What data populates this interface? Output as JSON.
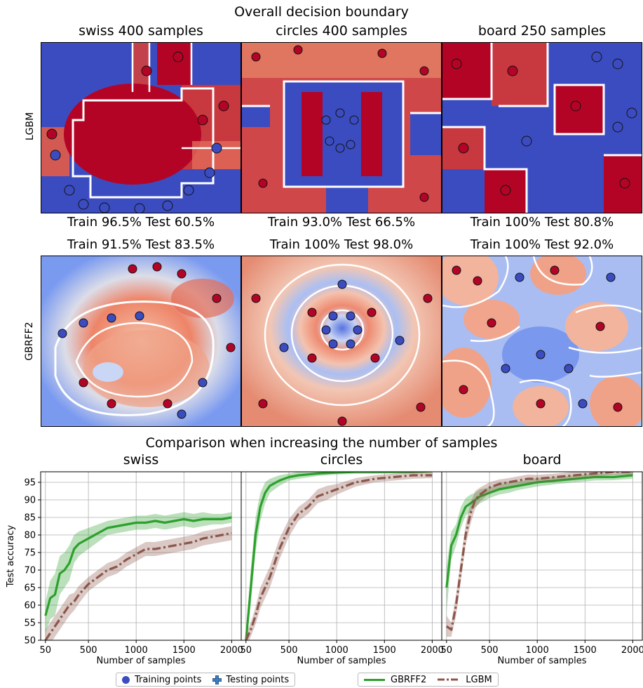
{
  "figure": {
    "top_title": "Overall decision boundary",
    "bottom_title": "Comparison when increasing the number of samples",
    "row_labels": [
      "LGBM",
      "GBRFF2"
    ],
    "columns": [
      {
        "name": "swiss",
        "title": "swiss 400 samples",
        "lgbm_score": "Train 96.5% Test 60.5%",
        "gbrff2_score": "Train 91.5% Test 83.5%"
      },
      {
        "name": "circles",
        "title": "circles 400 samples",
        "lgbm_score": "Train 93.0% Test 66.5%",
        "gbrff2_score": "Train 100% Test 98.0%"
      },
      {
        "name": "board",
        "title": "board 250 samples",
        "lgbm_score": "Train 100% Test 80.8%",
        "gbrff2_score": "Train 100% Test 92.0%"
      }
    ],
    "colors": {
      "blue": "#3b4cc0",
      "red": "#b40426",
      "green": "#2ca02c",
      "brown": "#8c564b"
    },
    "legend": {
      "training": "Training points",
      "testing": "Testing points",
      "gbrff2": "GBRFF2",
      "lgbm": "LGBM"
    }
  },
  "chart_data": [
    {
      "type": "line",
      "title": "swiss",
      "xlabel": "Number of samples",
      "ylabel": "Test accuracy",
      "xlim": [
        0,
        2100
      ],
      "ylim": [
        50,
        98
      ],
      "grid": true,
      "xticks": [
        50,
        500,
        1000,
        1500,
        2000
      ],
      "yticks": [
        50,
        55,
        60,
        65,
        70,
        75,
        80,
        85,
        90,
        95
      ],
      "series": [
        {
          "name": "GBRFF2",
          "x": [
            50,
            100,
            150,
            200,
            250,
            300,
            350,
            400,
            500,
            600,
            700,
            800,
            900,
            1000,
            1100,
            1200,
            1300,
            1400,
            1500,
            1600,
            1700,
            1800,
            1900,
            2000
          ],
          "y": [
            57,
            62,
            63,
            69,
            70,
            72,
            76,
            77.5,
            79,
            80.5,
            82,
            82.5,
            83,
            83.5,
            83.5,
            84,
            83.5,
            84,
            84.5,
            84,
            84.5,
            84.5,
            84.5,
            85
          ],
          "lower": [
            52,
            56,
            57,
            63,
            65,
            67,
            72,
            74,
            76,
            78,
            80,
            80.5,
            81,
            81.5,
            81.5,
            82,
            81.5,
            82,
            82.5,
            82,
            82.5,
            83,
            83,
            83.5
          ],
          "upper": [
            61,
            67,
            69,
            74,
            75,
            77,
            80,
            81,
            82,
            83,
            84,
            84.5,
            85,
            85.5,
            85.5,
            86,
            85.5,
            86,
            86.5,
            86,
            86.5,
            86,
            86,
            86.5
          ]
        },
        {
          "name": "LGBM",
          "x": [
            50,
            100,
            150,
            200,
            250,
            300,
            350,
            400,
            500,
            600,
            700,
            800,
            900,
            1000,
            1100,
            1200,
            1300,
            1400,
            1500,
            1600,
            1700,
            1800,
            1900,
            2000
          ],
          "y": [
            50,
            52,
            54,
            56,
            58,
            60,
            61,
            63,
            66,
            68,
            70,
            71,
            73,
            74.5,
            76,
            76,
            76.5,
            77,
            77.5,
            78,
            79,
            79.5,
            80,
            80.5
          ],
          "lower": [
            47,
            49,
            51,
            53,
            55,
            57,
            58.5,
            60.5,
            64,
            66,
            68,
            69,
            71,
            72.5,
            74,
            74,
            74.5,
            75,
            75.5,
            76,
            77,
            77.5,
            78,
            78.5
          ],
          "upper": [
            53,
            55,
            57,
            59,
            61,
            63,
            63.5,
            65.5,
            68,
            70,
            72,
            73,
            75,
            76.5,
            78,
            78,
            78.5,
            79,
            79.5,
            80,
            81,
            81.5,
            82,
            82.5
          ]
        }
      ]
    },
    {
      "type": "line",
      "title": "circles",
      "xlabel": "Number of samples",
      "ylabel": "",
      "xlim": [
        0,
        2100
      ],
      "ylim": [
        50,
        98
      ],
      "grid": true,
      "xticks": [
        50,
        500,
        1000,
        1500,
        2000
      ],
      "yticks": [
        50,
        55,
        60,
        65,
        70,
        75,
        80,
        85,
        90,
        95
      ],
      "series": [
        {
          "name": "GBRFF2",
          "x": [
            50,
            100,
            150,
            200,
            250,
            300,
            400,
            500,
            600,
            800,
            1000,
            1200,
            1400,
            1600,
            1800,
            2000
          ],
          "y": [
            50,
            65,
            80,
            88,
            92,
            94,
            95.5,
            96.5,
            97,
            97.5,
            97.8,
            98,
            98,
            98,
            98,
            98.2
          ],
          "lower": [
            48,
            60,
            75,
            84,
            89,
            92,
            94,
            95.5,
            96,
            96.8,
            97.2,
            97.4,
            97.4,
            97.5,
            97.5,
            97.7
          ],
          "upper": [
            52,
            70,
            85,
            92,
            95,
            96,
            97,
            97.5,
            98,
            98.2,
            98.4,
            98.5,
            98.5,
            98.5,
            98.5,
            98.6
          ]
        },
        {
          "name": "LGBM",
          "x": [
            50,
            100,
            150,
            200,
            250,
            300,
            350,
            400,
            500,
            600,
            700,
            800,
            900,
            1000,
            1200,
            1400,
            1600,
            1800,
            2000
          ],
          "y": [
            50,
            53,
            57,
            62,
            65,
            68,
            72,
            76,
            82,
            86,
            88,
            91,
            92,
            93,
            95,
            96,
            96.5,
            97,
            97
          ],
          "lower": [
            48,
            51,
            54.5,
            59,
            62,
            65,
            69,
            73,
            79.5,
            84,
            86,
            89,
            90,
            91.5,
            93.8,
            95,
            95.5,
            96,
            96.2
          ],
          "upper": [
            52,
            55,
            59.5,
            65,
            68,
            71,
            75,
            79,
            84.5,
            88,
            90,
            93,
            94,
            94.5,
            96.2,
            97,
            97.5,
            98,
            97.8
          ]
        }
      ]
    },
    {
      "type": "line",
      "title": "board",
      "xlabel": "Number of samples",
      "ylabel": "",
      "xlim": [
        0,
        2100
      ],
      "ylim": [
        50,
        98
      ],
      "grid": true,
      "xticks": [
        50,
        500,
        1000,
        1500,
        2000
      ],
      "yticks": [
        50,
        55,
        60,
        65,
        70,
        75,
        80,
        85,
        90,
        95
      ],
      "series": [
        {
          "name": "GBRFF2",
          "x": [
            50,
            100,
            150,
            200,
            250,
            300,
            350,
            400,
            500,
            600,
            700,
            800,
            900,
            1000,
            1200,
            1400,
            1600,
            1800,
            2000
          ],
          "y": [
            65,
            77,
            80,
            85,
            88,
            89,
            90,
            91,
            92,
            93,
            93.5,
            94,
            94.5,
            95,
            95.5,
            96,
            96.5,
            96.5,
            97
          ],
          "lower": [
            58,
            73,
            77,
            82,
            85.5,
            86.5,
            88,
            89,
            90.5,
            91.5,
            92,
            92.8,
            93.3,
            93.8,
            94.5,
            95,
            95.5,
            95.6,
            96
          ],
          "upper": [
            71,
            81,
            83,
            88,
            90.5,
            91.5,
            92,
            93,
            93.5,
            94.5,
            95,
            95.2,
            95.7,
            96.2,
            96.5,
            97,
            97.5,
            97.4,
            98
          ]
        },
        {
          "name": "LGBM",
          "x": [
            50,
            100,
            150,
            200,
            250,
            300,
            350,
            400,
            500,
            600,
            700,
            800,
            900,
            1000,
            1200,
            1400,
            1600,
            1800,
            2000
          ],
          "y": [
            54,
            53,
            60,
            70,
            80,
            86,
            90,
            91.5,
            93.5,
            94.5,
            95,
            95.5,
            96,
            96,
            96.5,
            97,
            97.5,
            98,
            98
          ],
          "lower": [
            51,
            51,
            57,
            67,
            77,
            83,
            87.5,
            89.5,
            92,
            93.2,
            93.8,
            94.3,
            94.8,
            94.9,
            95.5,
            96,
            96.6,
            97.1,
            97.2
          ],
          "upper": [
            57,
            55,
            63,
            73,
            83,
            89,
            92.5,
            93.5,
            95,
            95.8,
            96.2,
            96.7,
            97.2,
            97.1,
            97.5,
            98,
            98.4,
            98.9,
            98.8
          ]
        }
      ]
    }
  ]
}
